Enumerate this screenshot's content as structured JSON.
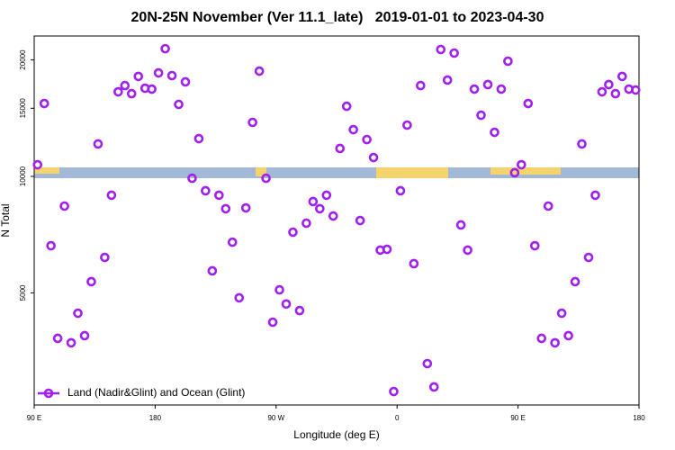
{
  "chart_data": {
    "type": "scatter",
    "title": "20N-25N November (Ver 11.1_late)   2019-01-01 to 2023-04-30",
    "x_label": "Longitude (deg E)",
    "y_label": "N Total",
    "xlim": [
      90,
      540
    ],
    "ylim": [
      2566,
      23060
    ],
    "y_log": true,
    "legend": "lower left",
    "xticks": [
      {
        "value": 90,
        "label": "90 E"
      },
      180,
      {
        "value": 270,
        "label": "90 W"
      },
      {
        "value": 360,
        "label": "0"
      },
      {
        "value": 450,
        "label": "90 E"
      },
      {
        "value": 540,
        "label": "180"
      }
    ],
    "yticks": [
      5000,
      10000,
      15000,
      20000
    ],
    "series": [
      {
        "name": "Land (Nadir&Glint) and Ocean (Glint)",
        "color": "#a020f0",
        "x": [
          92.5,
          97.5,
          102.5,
          107.5,
          112.5,
          117.5,
          122.5,
          127.5,
          132.5,
          137.5,
          142.5,
          147.5,
          152.5,
          157.5,
          162.5,
          167.5,
          172.5,
          177.5,
          182.5,
          187.5,
          192.5,
          197.5,
          202.5,
          207.5,
          212.5,
          217.5,
          222.5,
          227.5,
          232.5,
          237.5,
          242.5,
          247.5,
          252.5,
          257.5,
          262.5,
          267.5,
          272.5,
          277.5,
          282.5,
          287.5,
          292.5,
          297.5,
          302.5,
          307.5,
          312.5,
          317.5,
          322.5,
          327.5,
          332.5,
          337.5,
          342.5,
          347.5,
          352.5,
          357.5,
          362.5,
          367.5,
          372.5,
          377.5,
          382.5,
          387.5,
          392.5,
          397.5,
          402.5,
          407.5,
          412.5,
          417.5,
          422.5,
          427.5,
          432.5,
          437.5,
          442.5,
          447.5,
          452.5,
          457.5,
          462.5,
          467.5,
          472.5,
          477.5,
          482.5,
          487.5,
          492.5,
          497.5,
          502.5,
          507.5,
          512.5,
          517.5,
          522.5,
          527.5,
          532.5,
          537.5
        ],
        "values": [
          10720,
          15430,
          6620,
          3815,
          8380,
          3715,
          4430,
          3876,
          5345,
          12130,
          6175,
          8940,
          16540,
          17170,
          16360,
          18130,
          16900,
          16810,
          18510,
          21380,
          18220,
          15350,
          17550,
          9890,
          12520,
          9180,
          5700,
          8940,
          8250,
          6760,
          4855,
          8290,
          13790,
          18710,
          9890,
          4200,
          5090,
          4680,
          7175,
          4500,
          7570,
          8610,
          8250,
          8940,
          7900,
          11810,
          15180,
          13210,
          7690,
          12450,
          11190,
          6450,
          6480,
          2780,
          9180,
          13570,
          5950,
          17170,
          3283,
          2857,
          21280,
          17740,
          20830,
          7490,
          6450,
          16810,
          14390,
          17270,
          13000,
          16810,
          19850,
          10220,
          10720,
          15430,
          6620,
          3815,
          8380,
          3715,
          4430,
          3876,
          5345,
          12130,
          6175,
          8940,
          16540,
          17270,
          16360,
          18130,
          16810,
          16720
        ]
      }
    ]
  }
}
